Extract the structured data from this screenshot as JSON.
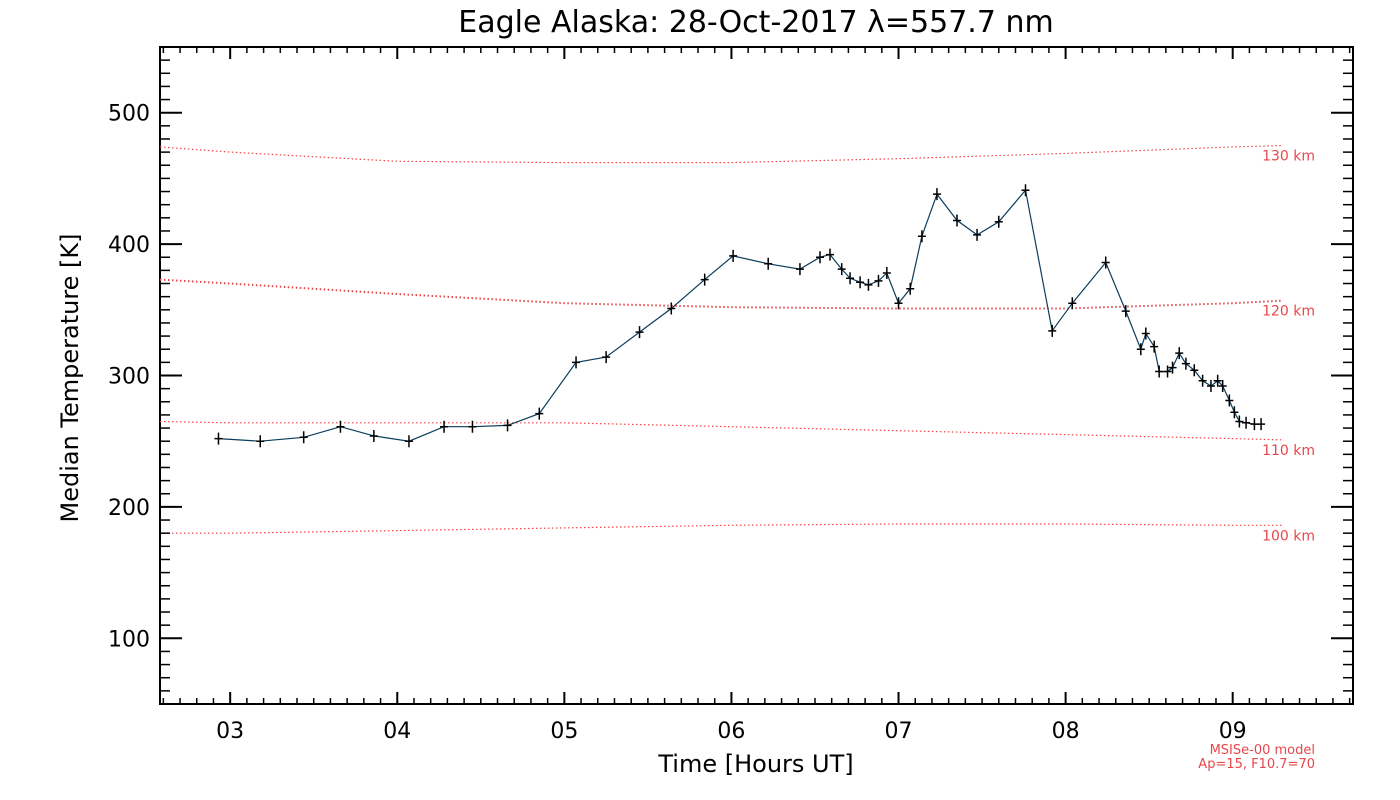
{
  "chart_data": {
    "type": "line",
    "title": "Eagle Alaska: 28-Oct-2017 λ=557.7 nm",
    "xlabel": "Time [Hours UT]",
    "ylabel": "Median Temperature [K]",
    "xlim": [
      2.58,
      9.72
    ],
    "ylim": [
      50,
      550
    ],
    "x_ticks": [
      3,
      4,
      5,
      6,
      7,
      8,
      9
    ],
    "x_tick_labels": [
      "03",
      "04",
      "05",
      "06",
      "07",
      "08",
      "09"
    ],
    "y_ticks": [
      100,
      200,
      300,
      400,
      500
    ],
    "y_tick_labels": [
      "100",
      "200",
      "300",
      "400",
      "500"
    ],
    "grid": false,
    "series": [
      {
        "color": "#0b3d5c",
        "marker": "plus",
        "x": [
          2.93,
          3.18,
          3.44,
          3.66,
          3.86,
          4.07,
          4.28,
          4.45,
          4.66,
          4.85,
          5.07,
          5.25,
          5.45,
          5.64,
          5.84,
          6.01,
          6.22,
          6.41,
          6.53,
          6.59,
          6.66,
          6.71,
          6.77,
          6.82,
          6.88,
          6.93,
          7.0,
          7.07,
          7.14,
          7.23,
          7.35,
          7.47,
          7.6,
          7.76,
          7.92,
          8.04,
          8.24,
          8.36,
          8.45,
          8.48,
          8.53,
          8.56,
          8.61,
          8.64,
          8.68,
          8.72,
          8.77,
          8.82,
          8.87,
          8.91,
          8.94,
          8.98,
          9.01,
          9.04,
          9.08,
          9.13,
          9.17
        ],
        "y": [
          252,
          250,
          253,
          261,
          254,
          250,
          261,
          261,
          262,
          271,
          310,
          314,
          333,
          351,
          373,
          391,
          385,
          381,
          390,
          392,
          381,
          374,
          371,
          369,
          372,
          378,
          355,
          366,
          406,
          438,
          418,
          407,
          417,
          441,
          334,
          355,
          386,
          349,
          320,
          332,
          322,
          303,
          303,
          306,
          317,
          309,
          304,
          296,
          292,
          296,
          292,
          281,
          272,
          265,
          264,
          263,
          263
        ]
      }
    ],
    "model_curves": [
      {
        "name": "130 km",
        "color": "#e8474a",
        "x": [
          2.58,
          3.0,
          4.0,
          5.0,
          6.0,
          7.0,
          8.0,
          9.0,
          9.3
        ],
        "y": [
          474,
          470,
          463,
          462,
          462,
          465,
          469,
          474,
          475
        ]
      },
      {
        "name": "120 km",
        "color": "#e8474a",
        "x": [
          2.58,
          3.0,
          4.0,
          5.0,
          6.0,
          7.0,
          8.0,
          9.0,
          9.3
        ],
        "y": [
          373,
          370,
          362,
          355,
          352,
          351,
          351,
          355,
          357
        ]
      },
      {
        "name": "110 km",
        "color": "#e8474a",
        "x": [
          2.58,
          3.0,
          4.0,
          5.0,
          6.0,
          7.0,
          8.0,
          9.0,
          9.3
        ],
        "y": [
          265,
          264,
          264,
          264,
          261,
          258,
          255,
          252,
          251
        ]
      },
      {
        "name": "100 km",
        "color": "#e8474a",
        "x": [
          2.58,
          3.0,
          4.0,
          5.0,
          6.0,
          7.0,
          8.0,
          9.0,
          9.3
        ],
        "y": [
          180,
          180,
          182,
          184,
          186,
          187,
          187,
          186,
          186
        ]
      }
    ],
    "model_note": [
      "MSISe-00 model",
      "Ap=15, F10.7=70"
    ]
  }
}
